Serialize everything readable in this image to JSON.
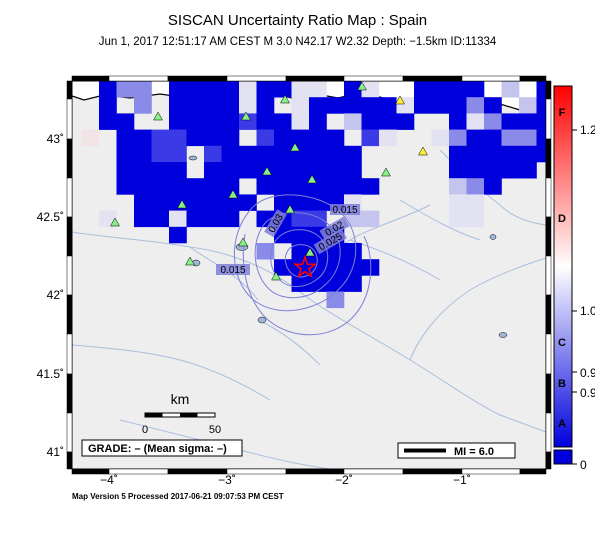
{
  "header": {
    "title": "SISCAN Uncertainty Ratio Map : Spain",
    "subtitle": "Jun  1, 2017 12:51:17 AM CEST   M 3.0   N42.17 W2.32   Depth: −1.5km   ID:11334"
  },
  "axes": {
    "lat_ticks": [
      "43˚",
      "42.5˚",
      "42˚",
      "41.5˚",
      "41˚"
    ],
    "lon_ticks": [
      "−4˚",
      "−3˚",
      "−2˚",
      "−1˚"
    ]
  },
  "contour_labels": [
    "0.015",
    "0.03",
    "0.015",
    "0.025",
    "0.02",
    "0.015"
  ],
  "scale_bar": {
    "unit": "km",
    "start": "0",
    "end": "50"
  },
  "grade_box": "GRADE: – (Mean sigma: –)",
  "mi_legend": "MI = 6.0",
  "colorbar": {
    "letters": [
      "F",
      "D",
      "C",
      "B",
      "A"
    ],
    "values": [
      "1.2",
      "1.0",
      "0.9",
      "0.9",
      "0"
    ],
    "colors": {
      "high": "#ff0000",
      "mid": "#ffffff",
      "low": "#0000dd"
    }
  },
  "footer": "Map Version 5 Processed 2017-06-21 09:07:53 PM CEST",
  "colors": {
    "land": "#eeeeee",
    "sea": "#ffffff",
    "river": "#a8bfdc",
    "contour": "#7f7fd8",
    "epicenter": "#ff0000",
    "station": "#88ee88",
    "station_alt": "#ffee33"
  },
  "map": {
    "epicenter": {
      "lat": 42.17,
      "lon": -2.32
    }
  }
}
